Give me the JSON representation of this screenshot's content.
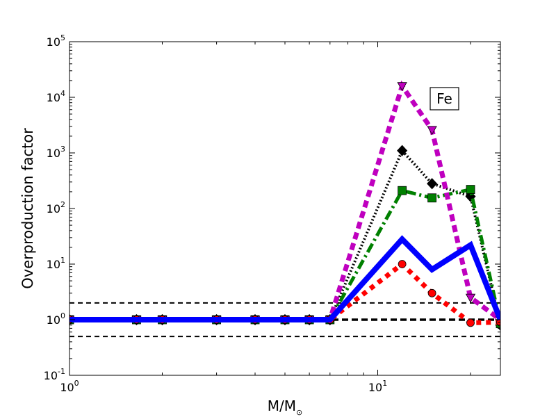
{
  "chart_data": {
    "type": "line",
    "title": "",
    "xlabel": "M/M⊙",
    "xlabel_main": "M/M",
    "xlabel_sub": "⊙",
    "ylabel": "Overproduction factor",
    "xscale": "log",
    "yscale": "log",
    "xlim": [
      1,
      25
    ],
    "ylim": [
      0.1,
      100000
    ],
    "grid": false,
    "annotation": "Fe",
    "x_ticks": [
      {
        "value": 1,
        "base": "10",
        "exp": "0"
      },
      {
        "value": 10,
        "base": "10",
        "exp": "1"
      }
    ],
    "y_ticks": [
      {
        "value": 0.1,
        "base": "10",
        "exp": "-1"
      },
      {
        "value": 1,
        "base": "10",
        "exp": "0"
      },
      {
        "value": 10,
        "base": "10",
        "exp": "1"
      },
      {
        "value": 100,
        "base": "10",
        "exp": "2"
      },
      {
        "value": 1000,
        "base": "10",
        "exp": "3"
      },
      {
        "value": 10000,
        "base": "10",
        "exp": "4"
      },
      {
        "value": 100000,
        "base": "10",
        "exp": "5"
      }
    ],
    "reference_lines": [
      {
        "y": 2,
        "style": "dashed",
        "color": "#000000"
      },
      {
        "y": 1,
        "style": "dashed-thick",
        "color": "#000000"
      },
      {
        "y": 0.5,
        "style": "dashed",
        "color": "#000000"
      }
    ],
    "series": [
      {
        "color": "#0000ff",
        "line": "solid",
        "marker": "none",
        "x": [
          1,
          1.65,
          2,
          3,
          4,
          5,
          6,
          7,
          12,
          15,
          20,
          25
        ],
        "y": [
          1,
          1,
          1,
          1,
          1,
          1,
          1,
          1,
          28,
          8,
          22,
          1
        ]
      },
      {
        "color": "#ff0000",
        "line": "dotted",
        "marker": "circle",
        "x": [
          1,
          1.65,
          2,
          3,
          4,
          5,
          6,
          7,
          12,
          15,
          20,
          25
        ],
        "y": [
          1,
          1,
          1,
          1,
          1,
          1,
          1,
          1,
          10,
          3,
          0.88,
          0.9
        ]
      },
      {
        "color": "#008000",
        "line": "dashdot",
        "marker": "square",
        "x": [
          1,
          1.65,
          2,
          3,
          4,
          5,
          6,
          7,
          12,
          15,
          20,
          25
        ],
        "y": [
          1,
          1,
          1,
          1,
          1,
          1,
          1,
          1,
          210,
          155,
          220,
          0.85
        ]
      },
      {
        "color": "#000000",
        "line": "dotted",
        "marker": "diamond",
        "x": [
          1,
          1.65,
          2,
          3,
          4,
          5,
          6,
          7,
          12,
          15,
          20,
          25
        ],
        "y": [
          1,
          1,
          1,
          1,
          1,
          1,
          1,
          1,
          1100,
          280,
          165,
          0.8
        ]
      },
      {
        "color": "#bf00bf",
        "line": "dotted",
        "marker": "triangle-down",
        "x": [
          1,
          1.65,
          2,
          3,
          4,
          5,
          6,
          7,
          12,
          15,
          20,
          25
        ],
        "y": [
          1,
          1,
          1,
          1,
          1,
          1,
          1,
          1,
          16000,
          2600,
          2.5,
          1
        ]
      }
    ]
  }
}
